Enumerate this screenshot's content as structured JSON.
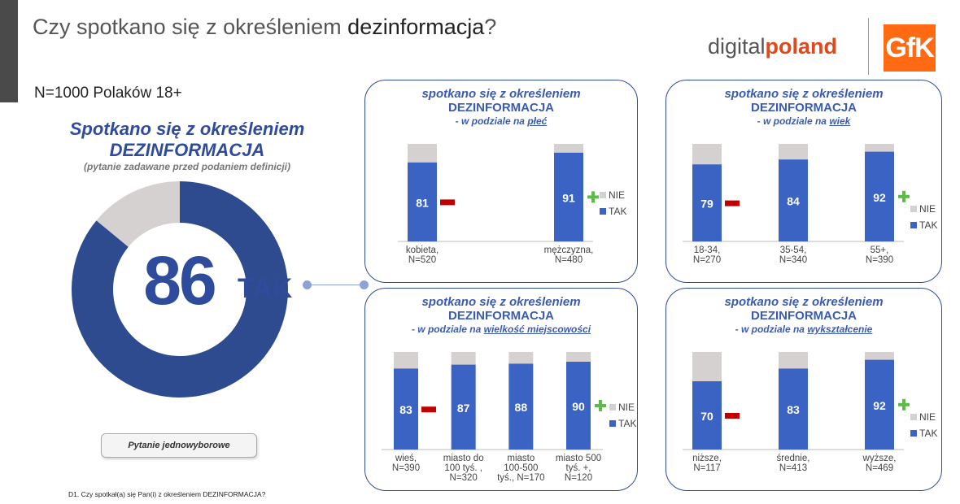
{
  "header": {
    "title_prefix": "Czy spotkano się z określeniem ",
    "title_bold": "dezinformacja",
    "title_suffix": "?",
    "sample": "N=1000 Polaków 18+",
    "logo_digital_a": "digital",
    "logo_digital_b": "poland",
    "logo_gfk": "GfK"
  },
  "main": {
    "title_line1": "Spotkano się z określeniem",
    "title_line2": "DEZINFORMACJA",
    "subtitle": "(pytanie zadawane przed podaniem definicji)",
    "value": "86",
    "value_label": "TAK",
    "button": "Pytanie jednowyborowe",
    "footnote": "D1. Czy spotkał(a) się Pan(i) z określeniem DEZINFORMACJA?"
  },
  "colors": {
    "tak": "#3a63c4",
    "nie": "#d6d1d1",
    "donut_tak": "#2f4b8f",
    "minus": "#c00000",
    "plus": "#5bbd45"
  },
  "chart_data": [
    {
      "type": "pie",
      "title": "Spotkano się z określeniem DEZINFORMACJA",
      "slices": [
        {
          "name": "TAK",
          "value": 86
        },
        {
          "name": "NIE",
          "value": 14
        }
      ]
    },
    {
      "type": "bar",
      "stacked": true,
      "title_line1": "spotkano się z określeniem",
      "title_line2": "DEZINFORMACJA",
      "title_line3_pre": "- w podziale na ",
      "title_line3_u": "płeć",
      "categories": [
        [
          "kobieta,",
          "N=520"
        ],
        [
          "mężczyzna,",
          "N=480"
        ]
      ],
      "values": [
        81,
        91
      ],
      "labels": [
        "81",
        "91"
      ],
      "markers": [
        "minus",
        "plus"
      ],
      "legend": [
        "NIE",
        "TAK"
      ]
    },
    {
      "type": "bar",
      "stacked": true,
      "title_line1": "spotkano się z określeniem",
      "title_line2": "DEZINFORMACJA",
      "title_line3_pre": "- w podziale na ",
      "title_line3_u": "wiek",
      "categories": [
        [
          "18-34,",
          "N=270"
        ],
        [
          "35-54,",
          "N=340"
        ],
        [
          "55+,",
          "N=390"
        ]
      ],
      "values": [
        79,
        84,
        92
      ],
      "labels": [
        "79",
        "84",
        "92"
      ],
      "markers": [
        "minus",
        "",
        "plus"
      ],
      "legend": [
        "NIE",
        "TAK"
      ]
    },
    {
      "type": "bar",
      "stacked": true,
      "title_line1": "spotkano się z określeniem",
      "title_line2": "DEZINFORMACJA",
      "title_line3_pre": "- w podziale na ",
      "title_line3_u": "wielkość miejscowości",
      "categories": [
        [
          "wieś,",
          "N=390"
        ],
        [
          "miasto do",
          "100 tyś. ,",
          "N=320"
        ],
        [
          "miasto",
          "100-500",
          "tyś., N=170"
        ],
        [
          "miasto 500",
          "tyś. +,",
          "N=120"
        ]
      ],
      "values": [
        83,
        87,
        88,
        90
      ],
      "labels": [
        "83",
        "87",
        "88",
        "90"
      ],
      "markers": [
        "minus",
        "",
        "",
        "plus"
      ],
      "legend": [
        "NIE",
        "TAK"
      ]
    },
    {
      "type": "bar",
      "stacked": true,
      "title_line1": "spotkano się z określeniem",
      "title_line2": "DEZINFORMACJA",
      "title_line3_pre": "- w podziale na ",
      "title_line3_u": "wykształcenie",
      "categories": [
        [
          "niższe,",
          "N=117"
        ],
        [
          "średnie,",
          "N=413"
        ],
        [
          "wyższe,",
          "N=469"
        ]
      ],
      "values": [
        70,
        83,
        92
      ],
      "labels": [
        "70",
        "83",
        "92"
      ],
      "markers": [
        "minus",
        "",
        "plus"
      ],
      "legend": [
        "NIE",
        "TAK"
      ]
    }
  ]
}
